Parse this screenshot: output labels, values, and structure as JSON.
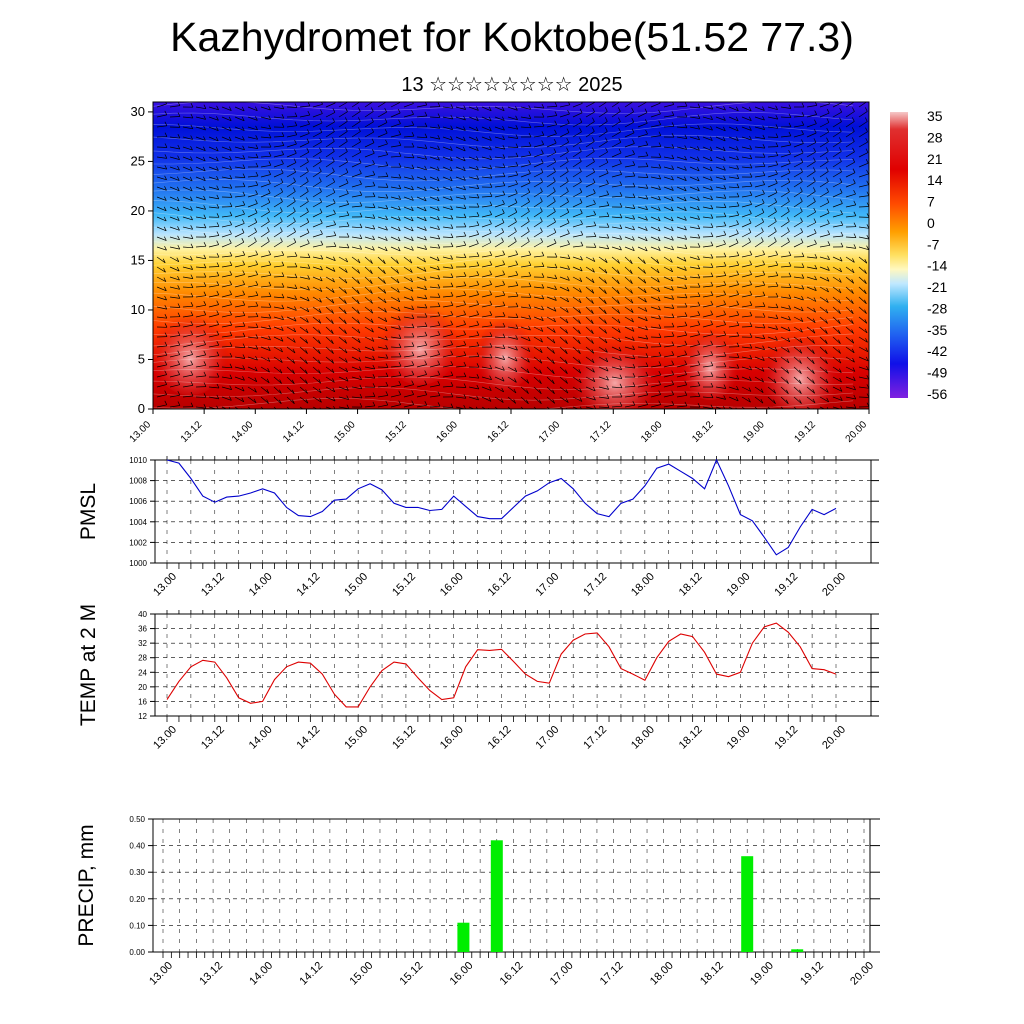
{
  "title": "Kazhydromet for Koktobe(51.52 77.3)",
  "subtitle": "13 ☆☆☆☆☆☆☆☆ 2025",
  "colors": {
    "pmsl_line": "#0000cc",
    "temp_line": "#dd0000",
    "precip_bar": "#00ee00",
    "wind_barbs": "#000000"
  },
  "chart_data": [
    {
      "type": "heatmap",
      "name": "cross-section",
      "ylim": [
        0,
        31
      ],
      "yticks": [
        0,
        5,
        10,
        15,
        20,
        25,
        30
      ],
      "xticks": [
        "13.00",
        "13.12",
        "14.00",
        "14.12",
        "15.00",
        "15.12",
        "16.00",
        "16.12",
        "17.00",
        "17.12",
        "18.00",
        "18.12",
        "19.00",
        "19.12",
        "20.00"
      ],
      "colorbar_labels": [
        "35",
        "28",
        "21",
        "14",
        "7",
        "0",
        "-7",
        "-14",
        "-21",
        "-28",
        "-35",
        "-42",
        "-49",
        "-56"
      ],
      "overlay": "wind barbs"
    },
    {
      "type": "line",
      "name": "PMSL",
      "ylabel": "PMSL",
      "ylim": [
        1000,
        1010
      ],
      "yticks": [
        "1000",
        "1002",
        "1004",
        "1006",
        "1008",
        "1010"
      ],
      "xticks": [
        "13.00",
        "13.12",
        "14.00",
        "14.12",
        "15.00",
        "15.12",
        "16.00",
        "16.12",
        "17.00",
        "17.12",
        "18.00",
        "18.12",
        "19.00",
        "19.12",
        "20.00"
      ],
      "values": [
        1010,
        1009.7,
        1008.2,
        1006.5,
        1005.9,
        1006.4,
        1006.5,
        1006.8,
        1007.2,
        1006.8,
        1005.4,
        1004.6,
        1004.5,
        1005,
        1006.1,
        1006.2,
        1007.2,
        1007.7,
        1007.1,
        1005.8,
        1005.4,
        1005.4,
        1005.1,
        1005.2,
        1006.5,
        1005.5,
        1004.5,
        1004.3,
        1004.3,
        1005.4,
        1006.5,
        1007,
        1007.8,
        1008.2,
        1007.2,
        1005.8,
        1004.8,
        1004.5,
        1005.8,
        1006.2,
        1007.5,
        1009.2,
        1009.6,
        1008.9,
        1008.2,
        1007.2,
        1010,
        1007.5,
        1004.7,
        1004.1,
        1002.5,
        1000.8,
        1001.5,
        1003.5,
        1005.2,
        1004.7,
        1005.3
      ]
    },
    {
      "type": "line",
      "name": "TEMP at 2 M",
      "ylabel": "TEMP at 2 M",
      "ylim": [
        12,
        40
      ],
      "yticks": [
        "12",
        "16",
        "20",
        "24",
        "28",
        "32",
        "36",
        "40"
      ],
      "xticks": [
        "13.00",
        "13.12",
        "14.00",
        "14.12",
        "15.00",
        "15.12",
        "16.00",
        "16.12",
        "17.00",
        "17.12",
        "18.00",
        "18.12",
        "19.00",
        "19.12",
        "20.00"
      ],
      "values": [
        16.5,
        21.5,
        25.5,
        27.3,
        26.8,
        22.5,
        17,
        15.5,
        16,
        22,
        25.5,
        26.8,
        26.5,
        23.5,
        18,
        14.5,
        14.5,
        20,
        24.5,
        26.8,
        26.3,
        22.5,
        19,
        16.5,
        17,
        25.5,
        30.2,
        30,
        30.3,
        27,
        23.5,
        21.5,
        21,
        29,
        32.8,
        34.5,
        34.8,
        31,
        25,
        23.5,
        21.8,
        28,
        32.5,
        34.5,
        33.8,
        29.5,
        23.5,
        22.8,
        24,
        32,
        36.5,
        37.5,
        35,
        31,
        25,
        24.7,
        23.5
      ]
    },
    {
      "type": "bar",
      "name": "PRECIP",
      "ylabel": "PRECIP, mm",
      "ylim": [
        0,
        0.5
      ],
      "yticks": [
        "0.00",
        "0.10",
        "0.20",
        "0.30",
        "0.40",
        "0.50"
      ],
      "xticks": [
        "13.00",
        "13.12",
        "14.00",
        "14.12",
        "15.00",
        "15.12",
        "16.00",
        "16.12",
        "17.00",
        "17.12",
        "18.00",
        "18.12",
        "19.00",
        "19.12",
        "20.00"
      ],
      "bars": [
        {
          "x": 36,
          "value": 0.11
        },
        {
          "x": 40,
          "value": 0.42
        },
        {
          "x": 70,
          "value": 0.36
        },
        {
          "x": 76,
          "value": 0.01
        }
      ],
      "x_count": 85
    }
  ]
}
